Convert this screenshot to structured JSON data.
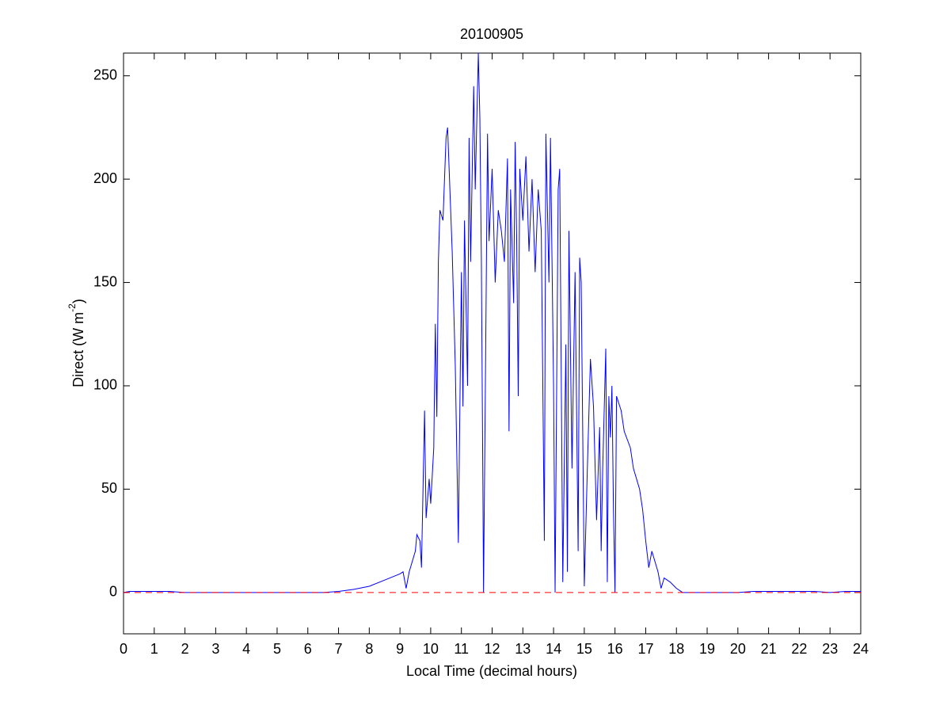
{
  "chart_data": {
    "type": "line",
    "title": "20100905",
    "xlabel": "Local Time (decimal hours)",
    "ylabel": [
      "Direct (W m",
      "-2",
      ")"
    ],
    "xlim": [
      0,
      24
    ],
    "xticks": [
      0,
      1,
      2,
      3,
      4,
      5,
      6,
      7,
      8,
      9,
      10,
      11,
      12,
      13,
      14,
      15,
      16,
      17,
      18,
      19,
      20,
      21,
      22,
      23,
      24
    ],
    "ylim": [
      -20,
      261
    ],
    "yticks": [
      0,
      50,
      100,
      150,
      200,
      250
    ],
    "series": [
      {
        "color": "#0000ff",
        "x": [
          0,
          0.2,
          1.5,
          2,
          6.5,
          7,
          7.5,
          8,
          8.5,
          9,
          9.1,
          9.2,
          9.3,
          9.5,
          9.55,
          9.65,
          9.7,
          9.75,
          9.8,
          9.85,
          9.95,
          10.0,
          10.1,
          10.15,
          10.2,
          10.25,
          10.3,
          10.4,
          10.5,
          10.55,
          10.6,
          10.7,
          10.8,
          10.9,
          11.0,
          11.05,
          11.1,
          11.2,
          11.25,
          11.3,
          11.4,
          11.45,
          11.55,
          11.6,
          11.65,
          11.7,
          11.72,
          11.78,
          11.85,
          11.9,
          12.0,
          12.1,
          12.2,
          12.3,
          12.4,
          12.5,
          12.55,
          12.6,
          12.7,
          12.75,
          12.8,
          12.85,
          12.9,
          13.0,
          13.1,
          13.2,
          13.3,
          13.4,
          13.5,
          13.6,
          13.7,
          13.75,
          13.85,
          13.9,
          14.0,
          14.05,
          14.15,
          14.2,
          14.3,
          14.4,
          14.45,
          14.5,
          14.6,
          14.7,
          14.8,
          14.85,
          14.9,
          15.0,
          15.1,
          15.2,
          15.3,
          15.4,
          15.5,
          15.55,
          15.6,
          15.7,
          15.75,
          15.8,
          15.85,
          15.9,
          15.95,
          16.0,
          16.05,
          16.2,
          16.3,
          16.5,
          16.6,
          16.8,
          16.9,
          17.0,
          17.1,
          17.2,
          17.4,
          17.5,
          17.6,
          17.8,
          18.0,
          18.2,
          20,
          20.5,
          22.5,
          23,
          23.5,
          24
        ],
        "values": [
          0,
          0.5,
          0.5,
          0,
          0,
          0.5,
          1.5,
          3,
          6,
          9,
          10,
          2,
          10,
          20,
          28,
          25,
          12,
          50,
          88,
          36,
          55,
          43,
          70,
          130,
          85,
          160,
          185,
          180,
          220,
          225,
          205,
          165,
          110,
          24,
          155,
          90,
          180,
          100,
          220,
          160,
          245,
          195,
          261,
          230,
          160,
          50,
          0,
          100,
          222,
          170,
          205,
          150,
          185,
          175,
          160,
          210,
          78,
          195,
          140,
          218,
          170,
          95,
          205,
          180,
          211,
          165,
          200,
          155,
          195,
          175,
          25,
          222,
          150,
          220,
          100,
          0,
          195,
          205,
          5,
          120,
          10,
          175,
          60,
          155,
          20,
          162,
          150,
          3,
          60,
          113,
          90,
          35,
          80,
          20,
          60,
          118,
          5,
          95,
          75,
          100,
          40,
          0,
          95,
          88,
          78,
          70,
          60,
          50,
          40,
          25,
          12,
          20,
          10,
          2,
          7,
          5,
          2,
          0,
          0,
          0.5,
          0.5,
          0,
          0.5,
          0.5
        ]
      }
    ],
    "hline": {
      "value": 0,
      "color": "#ff0000",
      "style": "dashed"
    }
  }
}
